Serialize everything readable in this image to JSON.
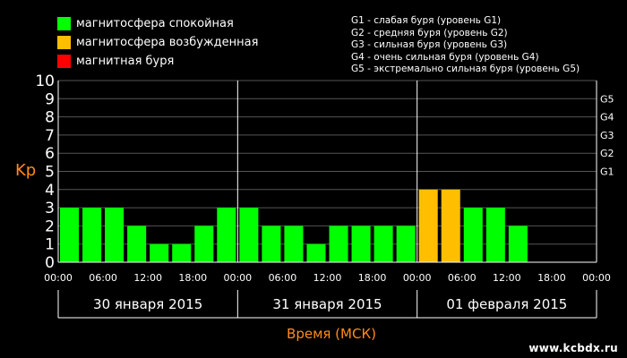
{
  "legend": {
    "items": [
      {
        "label": "магнитосфера спокойная",
        "color": "#00ff00"
      },
      {
        "label": "магнитосфера возбужденная",
        "color": "#ffbf00"
      },
      {
        "label": "магнитная буря",
        "color": "#ff0000"
      }
    ]
  },
  "storm_legend": [
    "G1 - слабая буря (уровень G1)",
    "G2 - средняя буря (уровень G2)",
    "G3 - сильная буря (уровень G3)",
    "G4 - очень сильная буря (уровень G4)",
    "G5 - экстремально сильная буря (уровень G5)"
  ],
  "watermark": "www.kcbdx.ru",
  "chart_data": {
    "type": "bar",
    "ylabel": "Kp",
    "xlabel": "Время (МСК)",
    "ylim": [
      0,
      10
    ],
    "yticks": [
      "0",
      "1",
      "2",
      "3",
      "4",
      "5",
      "6",
      "7",
      "8",
      "9",
      "10"
    ],
    "g_levels": [
      {
        "label": "G1",
        "kp": 5
      },
      {
        "label": "G2",
        "kp": 6
      },
      {
        "label": "G3",
        "kp": 7
      },
      {
        "label": "G4",
        "kp": 8
      },
      {
        "label": "G5",
        "kp": 9
      }
    ],
    "time_ticks": [
      "00:00",
      "06:00",
      "12:00",
      "18:00",
      "00:00",
      "06:00",
      "12:00",
      "18:00",
      "00:00",
      "06:00",
      "12:00",
      "18:00",
      "00:00"
    ],
    "days": [
      "30 января 2015",
      "31 января 2015",
      "01 февраля 2015"
    ],
    "values": [
      3,
      3,
      3,
      2,
      1,
      1,
      2,
      3,
      3,
      2,
      2,
      1,
      2,
      2,
      2,
      2,
      4,
      4,
      3,
      3,
      2,
      null,
      null,
      null
    ],
    "colors": {
      "quiet": "#00ff00",
      "active": "#ffbf00",
      "storm": "#ff0000"
    },
    "grid_color": "#555555"
  }
}
